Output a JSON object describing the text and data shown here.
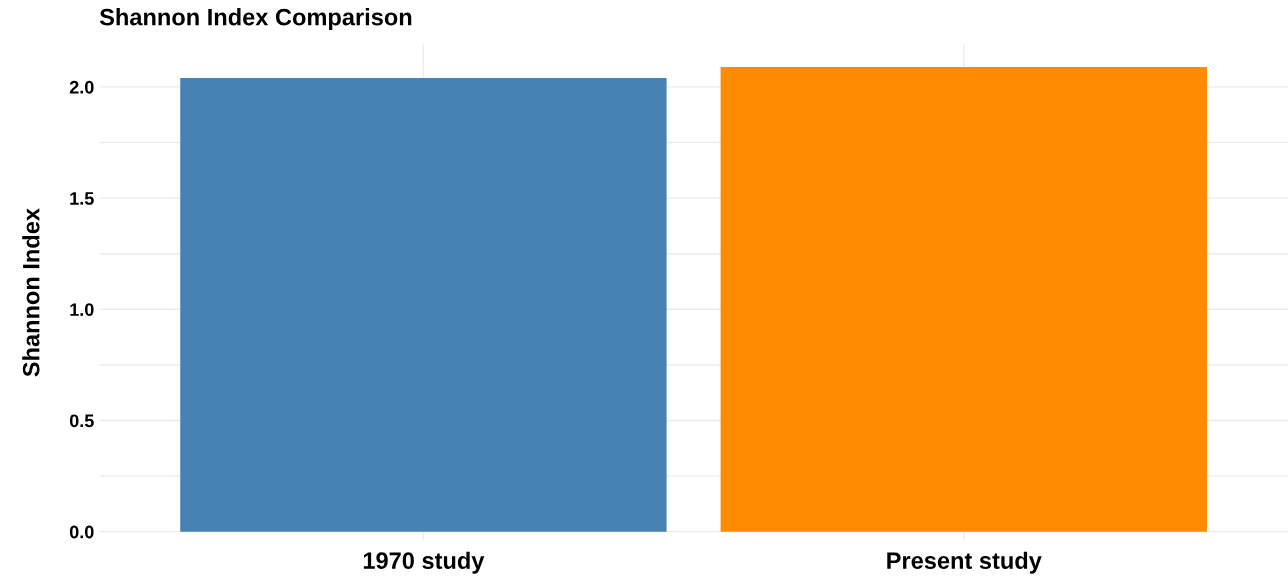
{
  "chart_data": {
    "type": "bar",
    "title": "Shannon Index Comparison",
    "ylabel": "Shannon Index",
    "categories": [
      "1970 study",
      "Present study"
    ],
    "values": [
      2.04,
      2.09
    ],
    "colors": [
      "#4682b4",
      "#ff8c00"
    ],
    "ylim": [
      -0.04,
      2.19
    ],
    "yticks": [
      {
        "value": 0,
        "label": "0.0"
      },
      0.5,
      {
        "value": 1,
        "label": "1.0"
      },
      1.5,
      {
        "value": 2,
        "label": "2.0"
      }
    ],
    "grid": true,
    "legend": false
  }
}
